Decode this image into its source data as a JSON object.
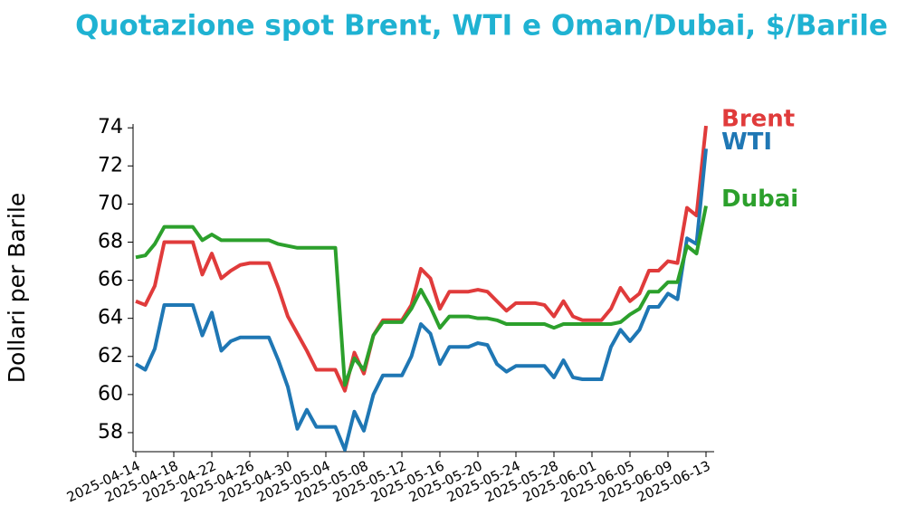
{
  "chart_data": {
    "type": "line",
    "title": "Quotazione spot Brent, WTI e Oman/Dubai, $/Barile",
    "y_label": "Dollari per Barile",
    "x": [
      "2025-04-14",
      "2025-04-15",
      "2025-04-16",
      "2025-04-17",
      "2025-04-18",
      "2025-04-19",
      "2025-04-20",
      "2025-04-21",
      "2025-04-22",
      "2025-04-23",
      "2025-04-24",
      "2025-04-25",
      "2025-04-26",
      "2025-04-27",
      "2025-04-28",
      "2025-04-29",
      "2025-04-30",
      "2025-05-01",
      "2025-05-02",
      "2025-05-03",
      "2025-05-04",
      "2025-05-05",
      "2025-05-06",
      "2025-05-07",
      "2025-05-08",
      "2025-05-09",
      "2025-05-10",
      "2025-05-11",
      "2025-05-12",
      "2025-05-13",
      "2025-05-14",
      "2025-05-15",
      "2025-05-16",
      "2025-05-17",
      "2025-05-18",
      "2025-05-19",
      "2025-05-20",
      "2025-05-21",
      "2025-05-22",
      "2025-05-23",
      "2025-05-24",
      "2025-05-25",
      "2025-05-26",
      "2025-05-27",
      "2025-05-28",
      "2025-05-29",
      "2025-05-30",
      "2025-05-31",
      "2025-06-01",
      "2025-06-02",
      "2025-06-03",
      "2025-06-04",
      "2025-06-05",
      "2025-06-06",
      "2025-06-07",
      "2025-06-08",
      "2025-06-09",
      "2025-06-10",
      "2025-06-11",
      "2025-06-12",
      "2025-06-13"
    ],
    "series": [
      {
        "name": "Brent",
        "color": "#e03b3b",
        "values": [
          64.9,
          64.7,
          65.7,
          68.0,
          68.0,
          68.0,
          68.0,
          66.3,
          67.4,
          66.1,
          66.5,
          66.8,
          66.9,
          66.9,
          66.9,
          65.6,
          64.1,
          63.2,
          62.3,
          61.3,
          61.3,
          61.3,
          60.2,
          62.2,
          61.1,
          63.1,
          63.9,
          63.9,
          63.9,
          64.7,
          66.6,
          66.1,
          64.5,
          65.4,
          65.4,
          65.4,
          65.5,
          65.4,
          64.9,
          64.4,
          64.8,
          64.8,
          64.8,
          64.7,
          64.1,
          64.9,
          64.1,
          63.9,
          63.9,
          63.9,
          64.5,
          65.6,
          64.9,
          65.3,
          66.5,
          66.5,
          67.0,
          66.9,
          69.8,
          69.4,
          74.1
        ]
      },
      {
        "name": "WTI",
        "color": "#1f77b4",
        "values": [
          61.6,
          61.3,
          62.4,
          64.7,
          64.7,
          64.7,
          64.7,
          63.1,
          64.3,
          62.3,
          62.8,
          63.0,
          63.0,
          63.0,
          63.0,
          61.8,
          60.4,
          58.2,
          59.2,
          58.3,
          58.3,
          58.3,
          57.1,
          59.1,
          58.1,
          60.0,
          61.0,
          61.0,
          61.0,
          62.0,
          63.7,
          63.2,
          61.6,
          62.5,
          62.5,
          62.5,
          62.7,
          62.6,
          61.6,
          61.2,
          61.5,
          61.5,
          61.5,
          61.5,
          60.9,
          61.8,
          60.9,
          60.8,
          60.8,
          60.8,
          62.5,
          63.4,
          62.8,
          63.4,
          64.6,
          64.6,
          65.3,
          65.0,
          68.2,
          67.9,
          72.9
        ]
      },
      {
        "name": "Dubai",
        "color": "#2ca02c",
        "values": [
          67.2,
          67.3,
          67.9,
          68.8,
          68.8,
          68.8,
          68.8,
          68.1,
          68.4,
          68.1,
          68.1,
          68.1,
          68.1,
          68.1,
          68.1,
          67.9,
          67.8,
          67.7,
          67.7,
          67.7,
          67.7,
          67.7,
          60.5,
          61.9,
          61.3,
          63.1,
          63.8,
          63.8,
          63.8,
          64.5,
          65.5,
          64.6,
          63.5,
          64.1,
          64.1,
          64.1,
          64.0,
          64.0,
          63.9,
          63.7,
          63.7,
          63.7,
          63.7,
          63.7,
          63.5,
          63.7,
          63.7,
          63.7,
          63.7,
          63.7,
          63.7,
          63.8,
          64.2,
          64.5,
          65.4,
          65.4,
          65.9,
          65.9,
          67.8,
          67.4,
          69.9
        ]
      }
    ],
    "xlim": [
      "2025-04-14",
      "2025-06-13"
    ],
    "xticks": [
      "2025-04-14",
      "2025-04-18",
      "2025-04-22",
      "2025-04-26",
      "2025-04-30",
      "2025-05-04",
      "2025-05-08",
      "2025-05-12",
      "2025-05-16",
      "2025-05-20",
      "2025-05-24",
      "2025-05-28",
      "2025-06-01",
      "2025-06-05",
      "2025-06-09",
      "2025-06-13"
    ],
    "ylim": [
      57,
      74.2
    ],
    "yticks": [
      58,
      60,
      62,
      64,
      66,
      68,
      70,
      72,
      74
    ],
    "grid": false
  }
}
